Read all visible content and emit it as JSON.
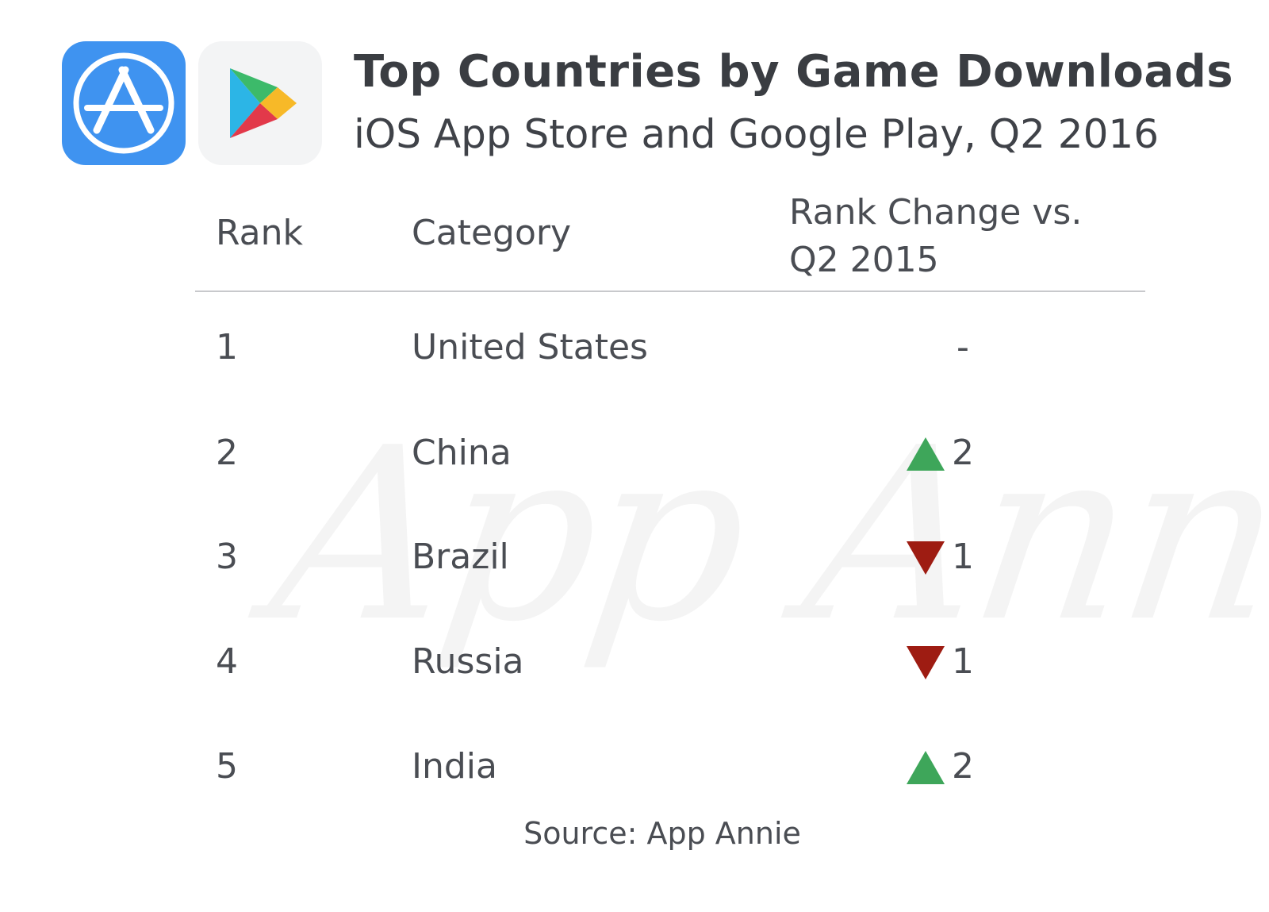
{
  "header": {
    "title": "Top Countries by Game Downloads",
    "subtitle": "iOS App Store and Google Play, Q2 2016",
    "logos": [
      "app-store-icon",
      "google-play-icon"
    ]
  },
  "watermark": "App Annie",
  "table": {
    "columns": [
      "Rank",
      "Category",
      "Rank Change vs.",
      "Q2 2015"
    ]
  },
  "chart_data": {
    "type": "table",
    "title": "Top Countries by Game Downloads",
    "subtitle": "iOS App Store and Google Play, Q2 2016",
    "columns": [
      "Rank",
      "Category",
      "Rank Change vs. Q2 2015"
    ],
    "rows": [
      {
        "rank": "1",
        "country": "United States",
        "direction": "none",
        "change": "-"
      },
      {
        "rank": "2",
        "country": "China",
        "direction": "up",
        "change": "2"
      },
      {
        "rank": "3",
        "country": "Brazil",
        "direction": "down",
        "change": "1"
      },
      {
        "rank": "4",
        "country": "Russia",
        "direction": "down",
        "change": "1"
      },
      {
        "rank": "5",
        "country": "India",
        "direction": "up",
        "change": "2"
      }
    ],
    "colors": {
      "up": "#3ea65a",
      "down": "#9e1c12"
    }
  },
  "footer": {
    "source": "Source: App Annie"
  }
}
